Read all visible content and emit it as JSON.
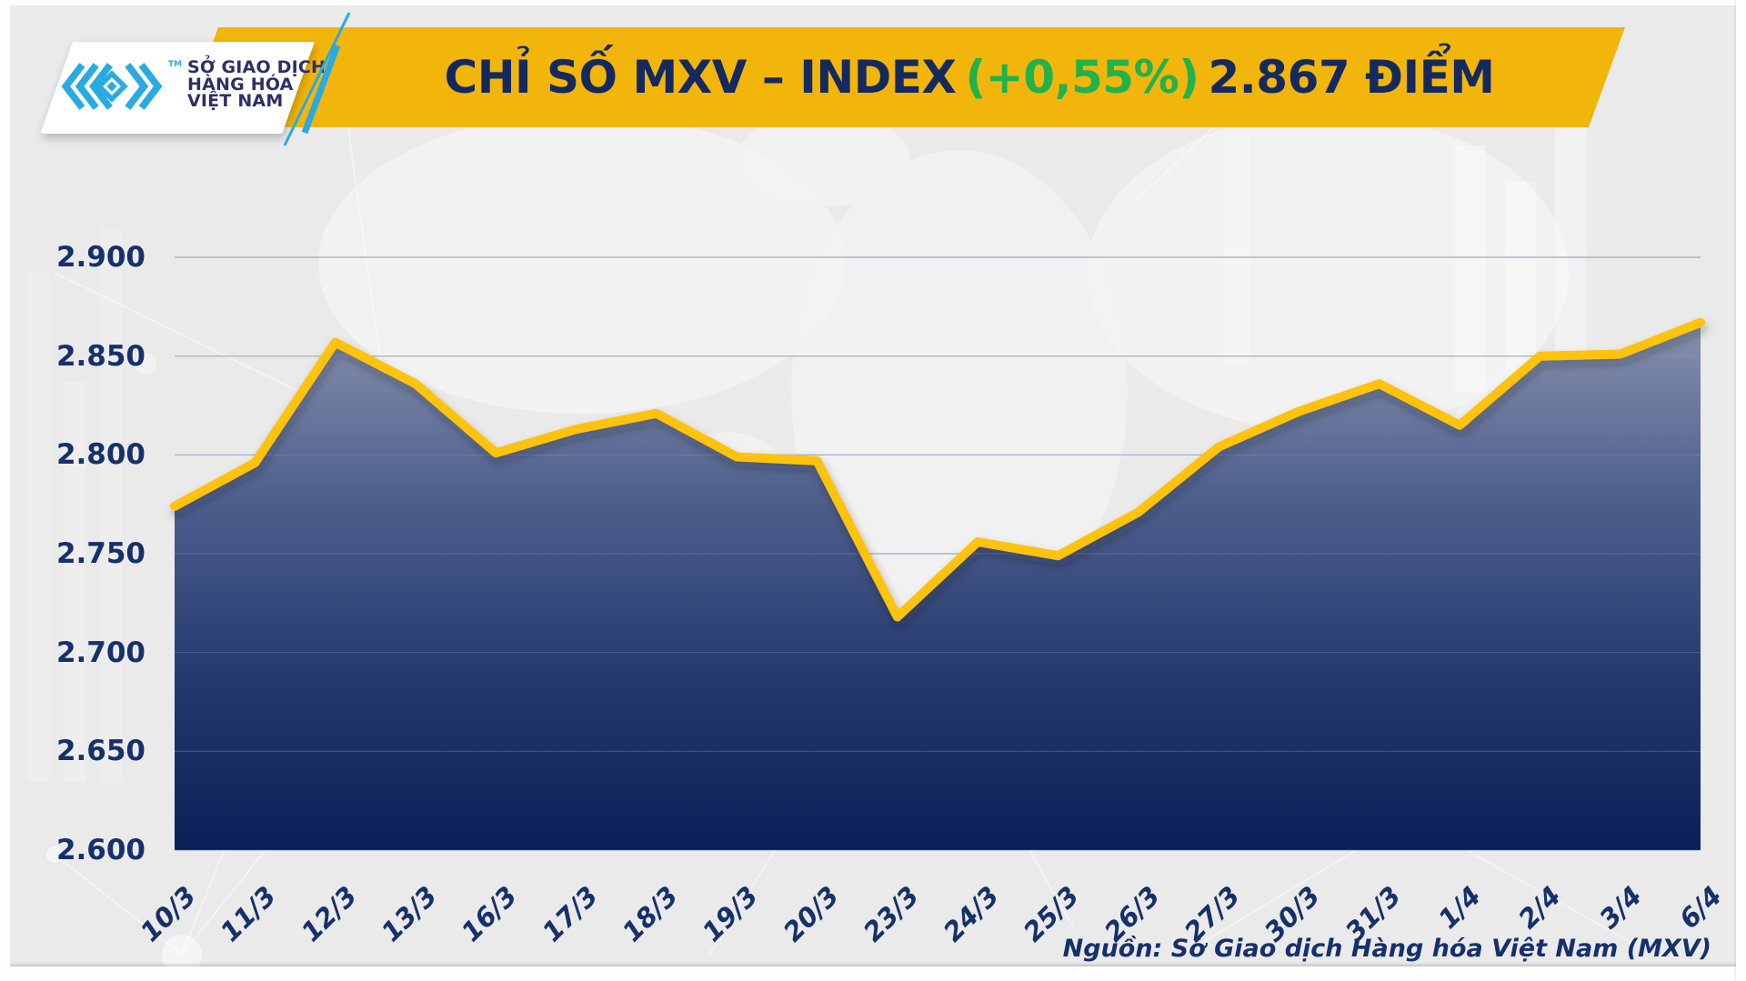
{
  "logo": {
    "org_line1": "SỞ GIAO DỊCH",
    "org_line2": "HÀNG HÓA",
    "org_line3": "VIỆT NAM",
    "trademark": "TM",
    "brand_color": "#29ABE2",
    "text_color": "#2D2F66"
  },
  "header": {
    "title_main": "CHỈ SỐ MXV – INDEX",
    "title_change": "(+0,55%)",
    "title_value": "2.867 ĐIỂM",
    "banner_color": "#F2B50B",
    "title_color": "#14295E",
    "change_color": "#21B24C"
  },
  "chart_data": {
    "type": "area",
    "title": "CHỈ SỐ MXV – INDEX (+0,55%) 2.867 ĐIỂM",
    "series_name": "MXV-Index",
    "categories": [
      "10/3",
      "11/3",
      "12/3",
      "13/3",
      "16/3",
      "17/3",
      "18/3",
      "19/3",
      "20/3",
      "23/3",
      "24/3",
      "25/3",
      "26/3",
      "27/3",
      "30/3",
      "31/3",
      "1/4",
      "2/4",
      "3/4",
      "6/4"
    ],
    "values": [
      2774,
      2796,
      2857,
      2836,
      2801,
      2813,
      2821,
      2799,
      2797,
      2718,
      2756,
      2749,
      2771,
      2804,
      2822,
      2836,
      2815,
      2850,
      2851,
      2867
    ],
    "ylim": [
      2600,
      2900
    ],
    "y_ticks": [
      2900,
      2850,
      2800,
      2750,
      2700,
      2650,
      2600
    ],
    "y_tick_labels": [
      "2.900",
      "2.850",
      "2.800",
      "2.750",
      "2.700",
      "2.650",
      "2.600"
    ],
    "grid": "horizontal",
    "legend": "none",
    "line_color": "#FFC20E",
    "gridline_color": "#AEB8CB",
    "area_gradient": [
      "#8C95AF",
      "#51628F",
      "#253A70",
      "#0A2058"
    ],
    "last_value_label": "2.867",
    "change_percent": "+0,55%"
  },
  "footer": {
    "source": "Nguồn: Sở Giao dịch Hàng hóa Việt Nam (MXV)"
  }
}
